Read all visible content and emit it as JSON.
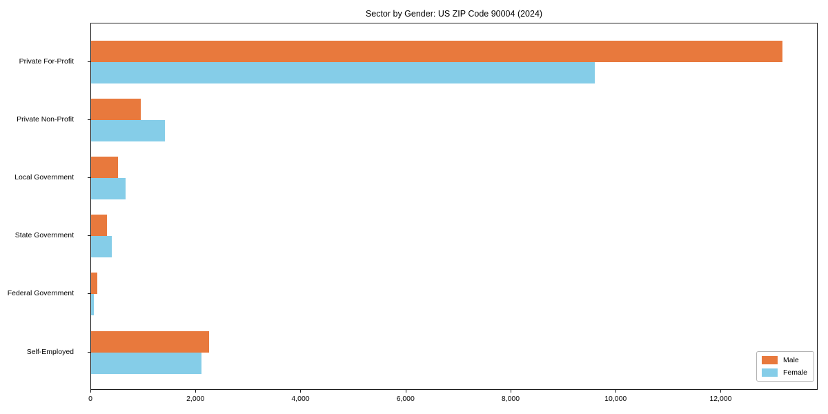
{
  "title": "Sector by Gender: US ZIP Code 90004 (2024)",
  "colors": {
    "male": "#e8793d",
    "female": "#85cde8",
    "axis": "#1a1a1a",
    "legend_border": "#b3b3b3",
    "background": "#ffffff"
  },
  "legend": {
    "position": "lower right",
    "entries": [
      "Male",
      "Female"
    ]
  },
  "chart_data": {
    "type": "bar",
    "orientation": "horizontal",
    "title": "Sector by Gender: US ZIP Code 90004 (2024)",
    "categories": [
      "Private For-Profit",
      "Private Non-Profit",
      "Local Government",
      "State Government",
      "Federal Government",
      "Self-Employed"
    ],
    "series": [
      {
        "name": "Male",
        "color": "#e8793d",
        "values": [
          13160,
          950,
          510,
          305,
          120,
          2250
        ]
      },
      {
        "name": "Female",
        "color": "#85cde8",
        "values": [
          9590,
          1400,
          655,
          395,
          55,
          2105
        ]
      }
    ],
    "xlabel": "",
    "ylabel": "",
    "xlim": [
      0,
      13820
    ],
    "xticks": [
      0,
      2000,
      4000,
      6000,
      8000,
      10000,
      12000
    ],
    "xtick_labels": [
      "0",
      "2,000",
      "4,000",
      "6,000",
      "8,000",
      "10,000",
      "12,000"
    ],
    "grid": false,
    "legend_position": "lower right"
  }
}
